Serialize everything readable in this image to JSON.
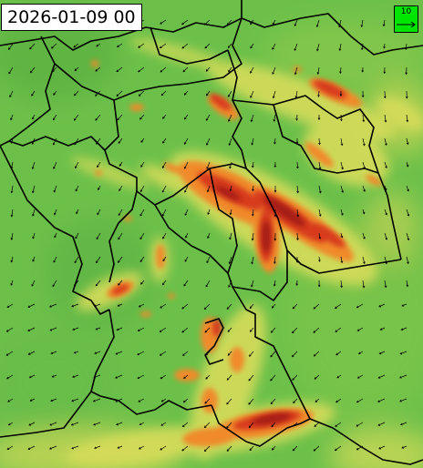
{
  "timestamp": "2026-01-09 00",
  "legend": {
    "reference_value": "10",
    "arrow_color": "#00e600"
  },
  "colors": {
    "low": "#6cc04a",
    "mid": "#d7dc5a",
    "high": "#f08a2a",
    "very_high": "#d73b1c",
    "extreme": "#a51a12"
  },
  "map_layers": [
    "wind-speed-field",
    "wind-vectors",
    "border-lines"
  ]
}
